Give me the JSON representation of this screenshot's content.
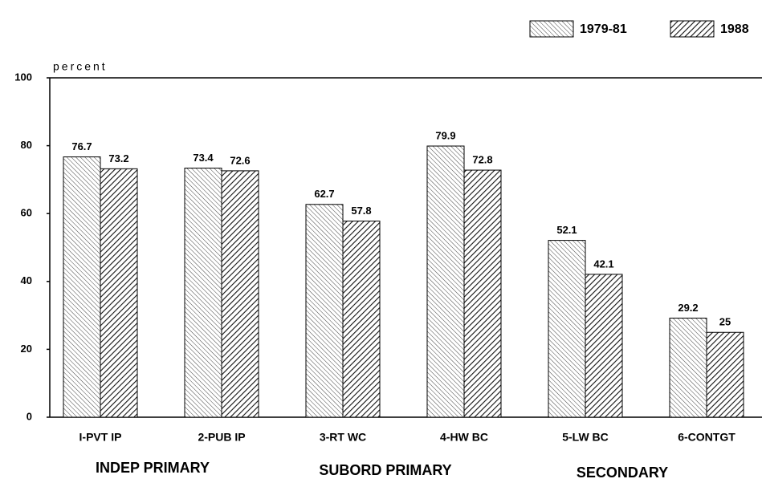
{
  "chart_data": {
    "type": "bar",
    "y_label": "percent",
    "categories": [
      "I-PVT IP",
      "2-PUB IP",
      "3-RT WC",
      "4-HW BC",
      "5-LW BC",
      "6-CONTGT"
    ],
    "group_labels": [
      "INDEP PRIMARY",
      "SUBORD PRIMARY",
      "SECONDARY"
    ],
    "series": [
      {
        "name": "1979-81",
        "color": "#444444",
        "values": [
          76.7,
          73.4,
          62.7,
          79.9,
          52.1,
          29.2
        ]
      },
      {
        "name": "1988",
        "color": "#111111",
        "values": [
          73.2,
          72.6,
          57.8,
          72.8,
          42.1,
          25
        ]
      }
    ],
    "ylim": [
      0,
      100
    ],
    "yticks": [
      0,
      20,
      40,
      60,
      80,
      100
    ],
    "grid": false,
    "legend": "top-right"
  }
}
